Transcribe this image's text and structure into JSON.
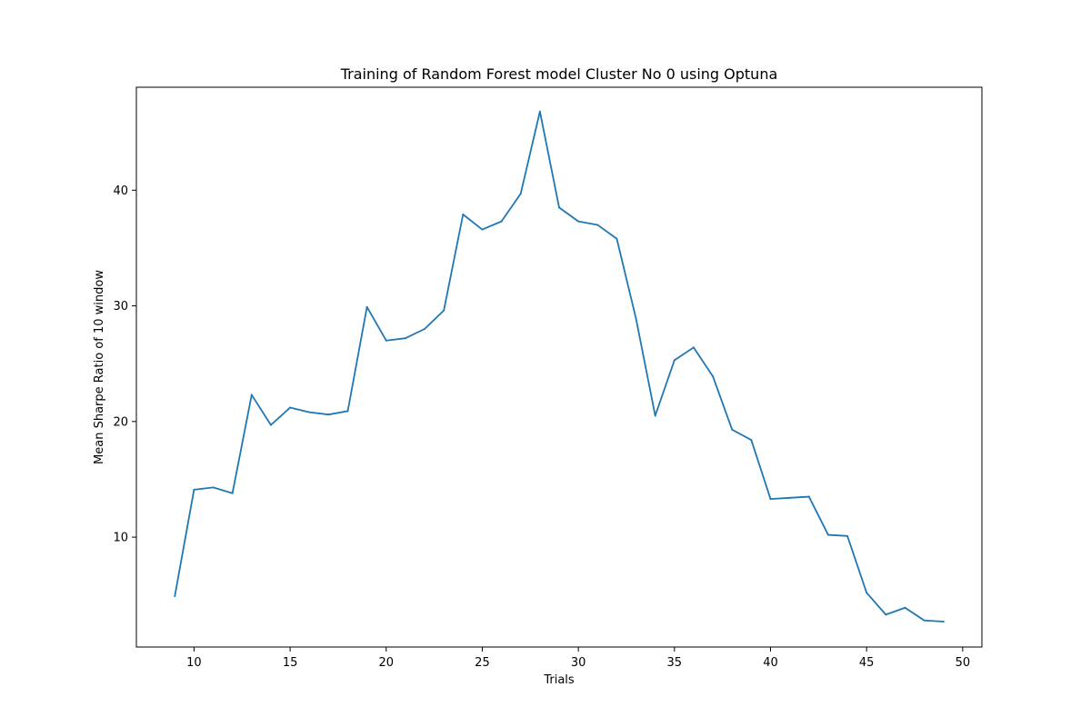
{
  "chart_data": {
    "type": "line",
    "title": "Training of Random Forest model Cluster No 0 using Optuna",
    "xlabel": "Trials",
    "ylabel": "Mean Sharpe Ratio of 10 window",
    "xlim": [
      7.0,
      51.0
    ],
    "ylim": [
      0.5,
      48.9
    ],
    "xticks": [
      10,
      15,
      20,
      25,
      30,
      35,
      40,
      45,
      50
    ],
    "yticks": [
      10,
      20,
      30,
      40
    ],
    "grid": false,
    "series": [
      {
        "color": "#1f77b4",
        "x": [
          9,
          10,
          11,
          12,
          13,
          14,
          15,
          16,
          17,
          18,
          19,
          20,
          21,
          22,
          23,
          24,
          25,
          26,
          27,
          28,
          29,
          30,
          31,
          32,
          33,
          34,
          35,
          36,
          37,
          38,
          39,
          40,
          41,
          42,
          43,
          44,
          45,
          46,
          47,
          48,
          49
        ],
        "values": [
          4.9,
          14.1,
          14.3,
          13.8,
          22.3,
          19.7,
          21.2,
          20.8,
          20.6,
          20.9,
          29.9,
          27.0,
          27.2,
          28.0,
          29.6,
          37.9,
          36.6,
          37.3,
          39.7,
          46.8,
          38.5,
          37.3,
          37.0,
          35.8,
          28.9,
          20.5,
          25.3,
          26.4,
          23.9,
          19.3,
          18.4,
          13.3,
          13.4,
          13.5,
          10.2,
          10.1,
          5.2,
          3.3,
          3.9,
          2.8,
          2.7
        ]
      }
    ]
  }
}
